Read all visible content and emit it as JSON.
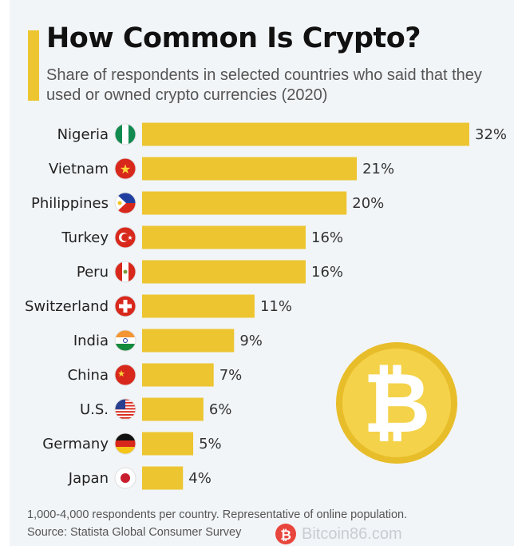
{
  "title": "How Common Is Crypto?",
  "subtitle": "Share of respondents in selected countries who said that they used or owned crypto currencies (2020)",
  "footer": {
    "note": "1,000-4,000 respondents per country. Representative of online population.",
    "source": "Source: Statista Global Consumer Survey"
  },
  "watermark": "Bitcoin86.com",
  "colors": {
    "bar": "#ecc531",
    "accent": "#ecc531",
    "coin": "#f2cf3a"
  },
  "chart_data": {
    "type": "bar",
    "orientation": "horizontal",
    "title": "How Common Is Crypto?",
    "categories": [
      "Nigeria",
      "Vietnam",
      "Philippines",
      "Turkey",
      "Peru",
      "Switzerland",
      "India",
      "China",
      "U.S.",
      "Germany",
      "Japan"
    ],
    "values": [
      32,
      21,
      20,
      16,
      16,
      11,
      9,
      7,
      6,
      5,
      4
    ],
    "value_labels": [
      "32%",
      "21%",
      "20%",
      "16%",
      "16%",
      "11%",
      "9%",
      "7%",
      "6%",
      "5%",
      "4%"
    ],
    "unit": "%",
    "xlim": [
      0,
      32
    ],
    "grid": false,
    "legend": "none",
    "category_icons": [
      "flag-nigeria",
      "flag-vietnam",
      "flag-philippines",
      "flag-turkey",
      "flag-peru",
      "flag-switzerland",
      "flag-india",
      "flag-china",
      "flag-us",
      "flag-germany",
      "flag-japan"
    ]
  }
}
